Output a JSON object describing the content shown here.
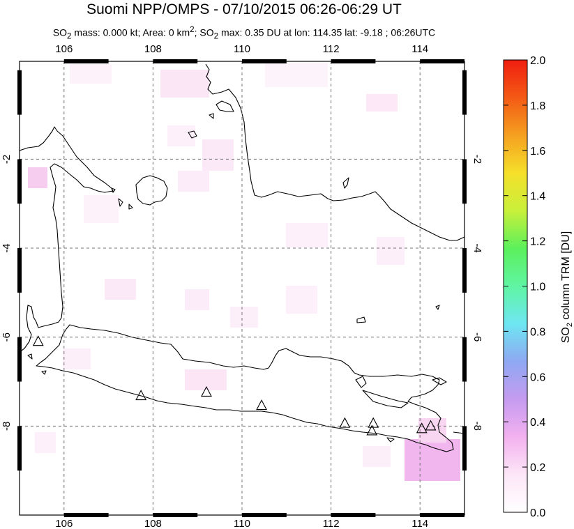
{
  "title": "Suomi NPP/OMPS - 07/10/2015 06:26-06:29 UT",
  "subtitle": {
    "so2_mass_prefix": "SO",
    "so2_mass_sub": "2",
    "mass_text": " mass: 0.000 kt; Area: 0 km",
    "area_sup": "2",
    "after_area": "; SO",
    "so2_max_sub": "2",
    "rest": " max: 0.35 DU at lon: 114.35 lat: -9.18 ; 06:26UTC"
  },
  "map": {
    "lon_range": [
      105,
      115
    ],
    "lat_range": [
      -10,
      0.2
    ],
    "lon_ticks": [
      106,
      108,
      110,
      112,
      114
    ],
    "lat_ticks": [
      -2,
      -4,
      -6,
      -8
    ],
    "lon_labels": [
      "106",
      "108",
      "110",
      "112",
      "114"
    ],
    "lat_labels": [
      "-2",
      "-4",
      "-6",
      "-8"
    ],
    "grid": "dashed",
    "coastline_color": "#000000",
    "volcanoes": [
      {
        "lon": 105.42,
        "lat": -6.1
      },
      {
        "lon": 107.73,
        "lat": -7.32
      },
      {
        "lon": 109.2,
        "lat": -7.24
      },
      {
        "lon": 110.44,
        "lat": -7.54
      },
      {
        "lon": 112.31,
        "lat": -7.94
      },
      {
        "lon": 112.95,
        "lat": -7.94
      },
      {
        "lon": 112.92,
        "lat": -8.11
      },
      {
        "lon": 114.04,
        "lat": -8.06
      },
      {
        "lon": 114.24,
        "lat": -8.0
      }
    ]
  },
  "colorbar": {
    "label_main": "SO",
    "label_sub": "2",
    "label_rest": " column TRM [DU]",
    "range": [
      0.0,
      2.0
    ],
    "ticks": [
      "0.0",
      "0.2",
      "0.4",
      "0.6",
      "0.8",
      "1.0",
      "1.2",
      "1.4",
      "1.6",
      "1.8",
      "2.0"
    ],
    "tick_values": [
      0.0,
      0.2,
      0.4,
      0.6,
      0.8,
      1.0,
      1.2,
      1.4,
      1.6,
      1.8,
      2.0
    ],
    "colors": [
      "#ffffff",
      "#fce6f7",
      "#f3b1ef",
      "#c59bf0",
      "#8fa8f2",
      "#6ee6f2",
      "#60f5a3",
      "#5cf05c",
      "#c9f03a",
      "#f5e02a",
      "#f5a020",
      "#f45a15",
      "#f01e10"
    ]
  }
}
